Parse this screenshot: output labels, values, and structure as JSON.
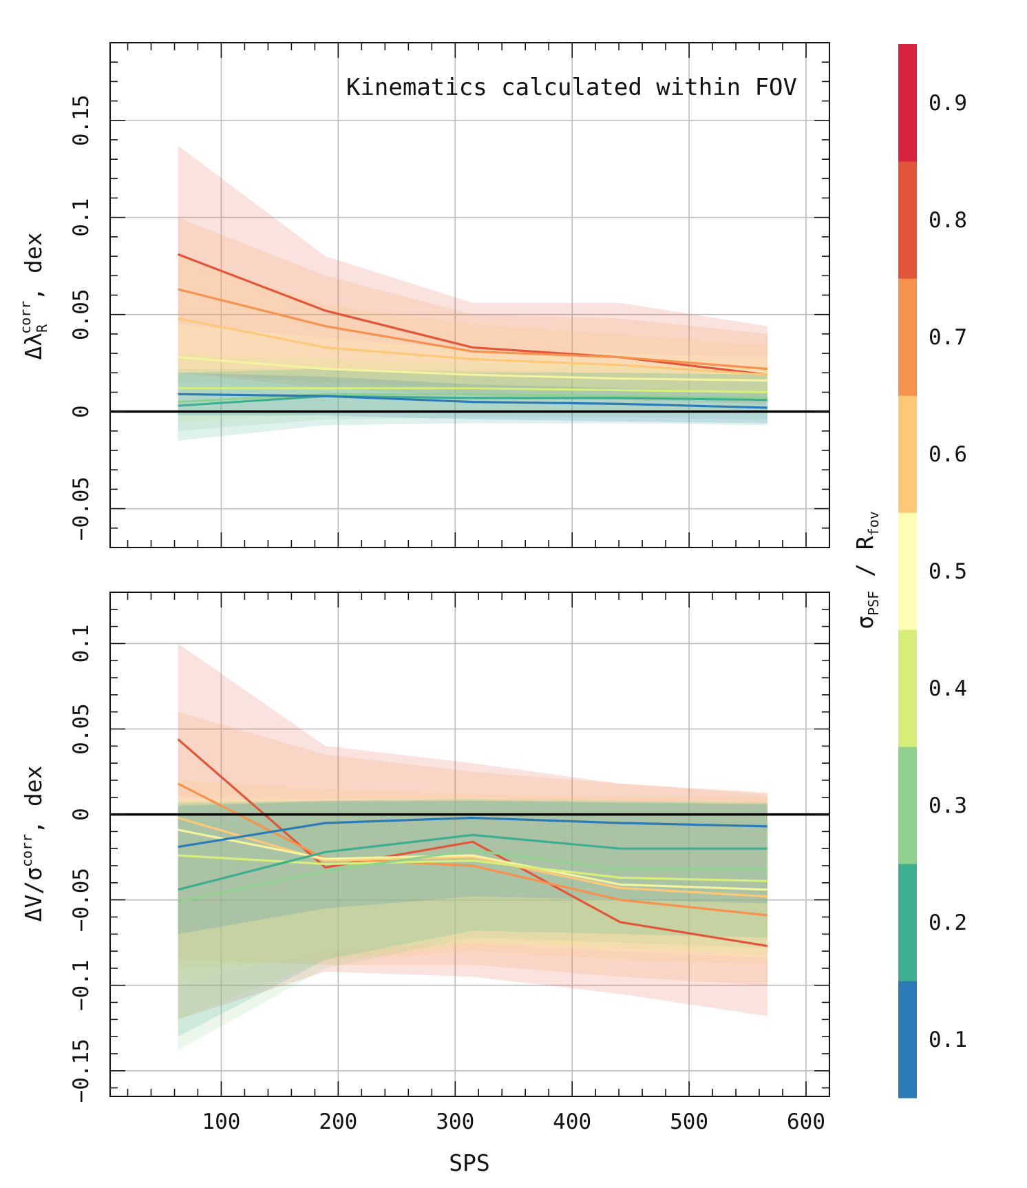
{
  "chart_data": [
    {
      "type": "line",
      "panel": "top",
      "annotation": "Kinematics calculated within FOV",
      "ylabel": {
        "main": "Δλ",
        "sub": "R",
        "sup": "corr",
        "tail": ", dex"
      },
      "xlabel": "",
      "xlim": [
        5,
        620
      ],
      "ylim": [
        -0.07,
        0.19
      ],
      "yticks": [
        -0.05,
        0,
        0.05,
        0.1,
        0.15
      ],
      "ytick_labels": [
        "−0.05",
        "0",
        "0.05",
        "0.1",
        "0.15"
      ],
      "xticks": [
        100,
        200,
        300,
        400,
        500,
        600
      ],
      "grid": true,
      "zero_line": true,
      "x": [
        63,
        189,
        315,
        441,
        567
      ],
      "series": [
        {
          "sigma": 0.1,
          "color": "#2c7bb6",
          "values": [
            0.009,
            0.008,
            0.005,
            0.004,
            0.002
          ],
          "lower": [
            -0.002,
            -0.002,
            -0.004,
            -0.005,
            -0.006
          ],
          "upper": [
            0.02,
            0.018,
            0.014,
            0.012,
            0.01
          ]
        },
        {
          "sigma": 0.2,
          "color": "#3dae8f",
          "values": [
            0.003,
            0.008,
            0.007,
            0.007,
            0.006
          ],
          "lower": [
            -0.015,
            -0.007,
            -0.006,
            -0.006,
            -0.007
          ],
          "upper": [
            0.02,
            0.022,
            0.02,
            0.02,
            0.019
          ]
        },
        {
          "sigma": 0.3,
          "color": "#91d190",
          "values": [
            0.005,
            0.009,
            0.009,
            0.008,
            0.007
          ],
          "lower": [
            -0.01,
            -0.004,
            -0.003,
            -0.003,
            -0.004
          ],
          "upper": [
            0.022,
            0.022,
            0.021,
            0.02,
            0.019
          ]
        },
        {
          "sigma": 0.4,
          "color": "#d6ee7a",
          "values": [
            0.012,
            0.012,
            0.012,
            0.011,
            0.01
          ],
          "lower": [
            -0.005,
            -0.001,
            0.0,
            0.0,
            -0.001
          ],
          "upper": [
            0.03,
            0.027,
            0.025,
            0.024,
            0.022
          ]
        },
        {
          "sigma": 0.5,
          "color": "#fefeb4",
          "values": [
            0.028,
            0.022,
            0.019,
            0.017,
            0.016
          ],
          "lower": [
            0.01,
            0.008,
            0.007,
            0.006,
            0.005
          ],
          "upper": [
            0.045,
            0.038,
            0.032,
            0.03,
            0.028
          ]
        },
        {
          "sigma": 0.6,
          "color": "#fdc978",
          "values": [
            0.048,
            0.033,
            0.027,
            0.024,
            0.019
          ],
          "lower": [
            0.015,
            0.012,
            0.01,
            0.009,
            0.008
          ],
          "upper": [
            0.08,
            0.055,
            0.045,
            0.04,
            0.034
          ]
        },
        {
          "sigma": 0.7,
          "color": "#f6924d",
          "values": [
            0.063,
            0.044,
            0.031,
            0.028,
            0.022
          ],
          "lower": [
            0.02,
            0.015,
            0.012,
            0.011,
            0.01
          ],
          "upper": [
            0.1,
            0.07,
            0.05,
            0.048,
            0.04
          ]
        },
        {
          "sigma": 0.8,
          "color": "#e3553a",
          "values": [
            0.081,
            0.052,
            0.033,
            0.028,
            0.019
          ],
          "lower": [
            0.02,
            0.012,
            0.008,
            0.006,
            0.004
          ],
          "upper": [
            0.137,
            0.08,
            0.056,
            0.056,
            0.044
          ]
        }
      ]
    },
    {
      "type": "line",
      "panel": "bottom",
      "annotation": "",
      "ylabel": {
        "main": "ΔV/σ",
        "sub": "",
        "sup": "corr",
        "tail": ", dex"
      },
      "xlabel": "SPS",
      "xlim": [
        5,
        620
      ],
      "ylim": [
        -0.165,
        0.13
      ],
      "yticks": [
        -0.15,
        -0.1,
        -0.05,
        0,
        0.05,
        0.1
      ],
      "ytick_labels": [
        "−0.15",
        "−0.1",
        "−0.05",
        "0",
        "0.05",
        "0.1"
      ],
      "xticks": [
        100,
        200,
        300,
        400,
        500,
        600
      ],
      "xtick_labels": [
        "100",
        "200",
        "300",
        "400",
        "500",
        "600"
      ],
      "grid": true,
      "zero_line": true,
      "x": [
        63,
        189,
        315,
        441,
        567
      ],
      "series": [
        {
          "sigma": 0.1,
          "color": "#2c7bb6",
          "values": [
            -0.019,
            -0.005,
            -0.002,
            -0.005,
            -0.007
          ],
          "lower": [
            -0.07,
            -0.055,
            -0.048,
            -0.05,
            -0.052
          ],
          "upper": [
            0.005,
            0.008,
            0.008,
            0.007,
            0.006
          ]
        },
        {
          "sigma": 0.2,
          "color": "#3dae8f",
          "values": [
            -0.044,
            -0.022,
            -0.012,
            -0.02,
            -0.02
          ],
          "lower": [
            -0.13,
            -0.085,
            -0.068,
            -0.07,
            -0.072
          ],
          "upper": [
            0.007,
            0.008,
            0.009,
            0.008,
            0.007
          ]
        },
        {
          "sigma": 0.3,
          "color": "#91d190",
          "values": [
            -0.051,
            -0.033,
            -0.021,
            -0.032,
            -0.032
          ],
          "lower": [
            -0.138,
            -0.09,
            -0.072,
            -0.075,
            -0.078
          ],
          "upper": [
            0.006,
            0.007,
            0.008,
            0.007,
            0.006
          ]
        },
        {
          "sigma": 0.4,
          "color": "#d6ee7a",
          "values": [
            -0.024,
            -0.029,
            -0.027,
            -0.037,
            -0.039
          ],
          "lower": [
            -0.12,
            -0.085,
            -0.075,
            -0.078,
            -0.082
          ],
          "upper": [
            0.008,
            0.008,
            0.009,
            0.008,
            0.007
          ]
        },
        {
          "sigma": 0.5,
          "color": "#fefeb4",
          "values": [
            -0.009,
            -0.026,
            -0.024,
            -0.041,
            -0.044
          ],
          "lower": [
            -0.1,
            -0.08,
            -0.075,
            -0.08,
            -0.084
          ],
          "upper": [
            0.01,
            0.009,
            0.009,
            0.008,
            0.007
          ]
        },
        {
          "sigma": 0.6,
          "color": "#fdc978",
          "values": [
            -0.002,
            -0.027,
            -0.025,
            -0.043,
            -0.048
          ],
          "lower": [
            -0.09,
            -0.085,
            -0.08,
            -0.085,
            -0.088
          ],
          "upper": [
            0.02,
            0.015,
            0.012,
            0.01,
            0.01
          ]
        },
        {
          "sigma": 0.7,
          "color": "#f6924d",
          "values": [
            0.018,
            -0.026,
            -0.03,
            -0.05,
            -0.059
          ],
          "lower": [
            -0.085,
            -0.088,
            -0.088,
            -0.095,
            -0.1
          ],
          "upper": [
            0.06,
            0.035,
            0.025,
            0.018,
            0.013
          ]
        },
        {
          "sigma": 0.8,
          "color": "#e3553a",
          "values": [
            0.044,
            -0.031,
            -0.016,
            -0.063,
            -0.077
          ],
          "lower": [
            -0.12,
            -0.092,
            -0.095,
            -0.105,
            -0.118
          ],
          "upper": [
            0.1,
            0.04,
            0.03,
            0.018,
            0.012
          ]
        }
      ]
    }
  ],
  "colorbar": {
    "label": {
      "main": "σ",
      "sub1": "PSF",
      "mid": " / R",
      "sub2": "fov"
    },
    "colors": [
      "#2c7bb6",
      "#3dae8f",
      "#91d190",
      "#d6ee7a",
      "#fefeb4",
      "#fdc978",
      "#f6924d",
      "#e3553a",
      "#d7233f"
    ],
    "ticks": [
      "0.1",
      "0.2",
      "0.3",
      "0.4",
      "0.5",
      "0.6",
      "0.7",
      "0.8",
      "0.9"
    ]
  }
}
